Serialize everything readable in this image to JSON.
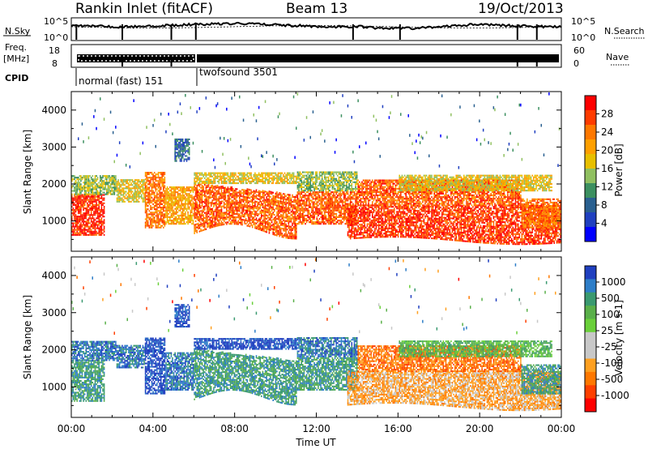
{
  "header": {
    "station": "Rankin Inlet (fitACF)",
    "beam": "Beam 13",
    "date": "19/Oct/2013"
  },
  "noise_panel": {
    "left_label": "N.Sky",
    "right_label": "N.Search",
    "left_ticks": [
      "10^5",
      "10^0"
    ],
    "right_ticks": [
      "10^5",
      "10^0"
    ]
  },
  "freq_panel": {
    "left_label_1": "Freq.",
    "left_label_2": "[MHz]",
    "right_label": "Nave",
    "left_ticks": [
      "18",
      "8"
    ],
    "right_ticks": [
      "60",
      "0"
    ]
  },
  "cpid": {
    "label": "CPID",
    "modes": [
      {
        "name": "normal (fast) 151",
        "start_hr": 0,
        "end_hr": 6
      },
      {
        "name": "twofsound 3501",
        "start_hr": 6,
        "end_hr": 24
      }
    ]
  },
  "power_scale": {
    "title": "Power [dB]",
    "ticks": [
      "28",
      "24",
      "20",
      "16",
      "12",
      "8",
      "4"
    ],
    "colors": [
      "#ff0000",
      "#ff3c00",
      "#ff7800",
      "#ffa000",
      "#e8c000",
      "#90c060",
      "#3c9060",
      "#2a6090",
      "#2040c0",
      "#0000ff"
    ]
  },
  "velocity_scale": {
    "title": "Velocity [m s-1]",
    "ticks": [
      "1000",
      "500",
      "100",
      "25",
      "-25",
      "-100",
      "-500",
      "-1000"
    ],
    "colors": [
      "#2040c0",
      "#2e7ec8",
      "#3a9a70",
      "#5ab04a",
      "#6ad03a",
      "#c8c8c8",
      "#c8c8c8",
      "#ffa020",
      "#ff7800",
      "#ff4000",
      "#ff0000"
    ]
  },
  "chart_data": [
    {
      "type": "heatmap",
      "title": "Power",
      "xlabel": "",
      "ylabel": "Slant Range [km]",
      "xlim": [
        0,
        24
      ],
      "ylim": [
        180,
        4500
      ],
      "x_tick_labels": [
        "00:00",
        "04:00",
        "08:00",
        "12:00",
        "16:00",
        "20:00",
        "00:00"
      ],
      "y_ticks": [
        1000,
        2000,
        3000,
        4000
      ],
      "clim": [
        0,
        30
      ],
      "colorbar_label": "Power [dB]"
    },
    {
      "type": "heatmap",
      "title": "Velocity",
      "xlabel": "Time UT",
      "ylabel": "Slant Range [km]",
      "xlim": [
        0,
        24
      ],
      "ylim": [
        180,
        4500
      ],
      "x_tick_labels": [
        "00:00",
        "04:00",
        "08:00",
        "12:00",
        "16:00",
        "20:00",
        "00:00"
      ],
      "y_ticks": [
        1000,
        2000,
        3000,
        4000
      ],
      "clim": [
        -1000,
        1000
      ],
      "colorbar_label": "Velocity [m s-1]"
    }
  ]
}
